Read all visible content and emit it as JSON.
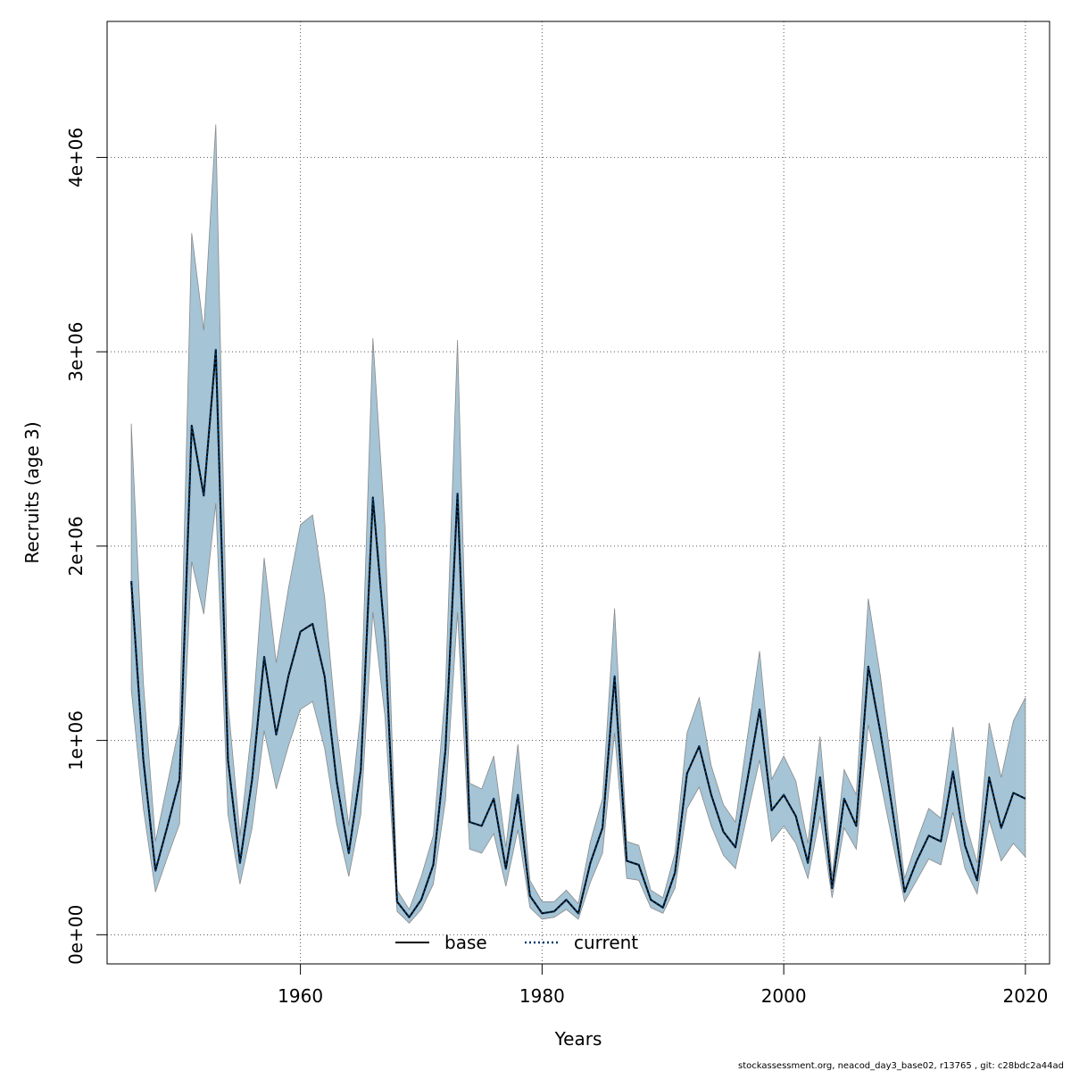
{
  "chart_data": {
    "type": "line",
    "xlabel": "Years",
    "ylabel": "Recruits (age 3)",
    "xlim": [
      1944,
      2022
    ],
    "ylim": [
      -150000,
      4700000
    ],
    "x_ticks": [
      1960,
      1980,
      2000,
      2020
    ],
    "x_tick_labels": [
      "1960",
      "1980",
      "2000",
      "2020"
    ],
    "y_ticks": [
      0,
      1000000,
      2000000,
      3000000,
      4000000
    ],
    "y_tick_labels": [
      "0e+00",
      "1e+06",
      "2e+06",
      "3e+06",
      "4e+06"
    ],
    "grid": true,
    "legend_placement": "bottom-center",
    "colors": {
      "band_fill": "#a5c4d5",
      "band_stroke": "#8a8a8a",
      "base_line": "#000000",
      "current_line": "#003a70",
      "grid": "#555555"
    },
    "years": [
      1946,
      1947,
      1948,
      1949,
      1950,
      1951,
      1952,
      1953,
      1954,
      1955,
      1956,
      1957,
      1958,
      1959,
      1960,
      1961,
      1962,
      1963,
      1964,
      1965,
      1966,
      1967,
      1968,
      1969,
      1970,
      1971,
      1972,
      1973,
      1974,
      1975,
      1976,
      1977,
      1978,
      1979,
      1980,
      1981,
      1982,
      1983,
      1984,
      1985,
      1986,
      1987,
      1988,
      1989,
      1990,
      1991,
      1992,
      1993,
      1994,
      1995,
      1996,
      1997,
      1998,
      1999,
      2000,
      2001,
      2002,
      2003,
      2004,
      2005,
      2006,
      2007,
      2008,
      2009,
      2010,
      2011,
      2012,
      2013,
      2014,
      2015,
      2016,
      2017,
      2018,
      2019,
      2020
    ],
    "series": [
      {
        "name": "base",
        "style": "solid",
        "values": [
          1820000,
          900000,
          330000,
          560000,
          800000,
          2620000,
          2260000,
          3010000,
          900000,
          370000,
          800000,
          1430000,
          1030000,
          1330000,
          1560000,
          1600000,
          1330000,
          790000,
          420000,
          850000,
          2250000,
          1520000,
          170000,
          90000,
          180000,
          360000,
          950000,
          2270000,
          580000,
          560000,
          700000,
          340000,
          720000,
          200000,
          110000,
          120000,
          180000,
          110000,
          370000,
          550000,
          1330000,
          380000,
          360000,
          180000,
          140000,
          320000,
          830000,
          970000,
          720000,
          530000,
          450000,
          800000,
          1160000,
          640000,
          720000,
          610000,
          370000,
          810000,
          240000,
          700000,
          560000,
          1380000,
          1040000,
          640000,
          220000,
          380000,
          510000,
          480000,
          840000,
          460000,
          280000,
          810000,
          550000,
          730000,
          700000
        ]
      },
      {
        "name": "current",
        "style": "dotted",
        "values": [
          1820000,
          900000,
          330000,
          560000,
          800000,
          2620000,
          2260000,
          3010000,
          900000,
          370000,
          800000,
          1430000,
          1030000,
          1330000,
          1560000,
          1600000,
          1330000,
          790000,
          420000,
          850000,
          2250000,
          1520000,
          170000,
          90000,
          180000,
          360000,
          950000,
          2270000,
          580000,
          560000,
          700000,
          340000,
          720000,
          200000,
          110000,
          120000,
          180000,
          110000,
          370000,
          550000,
          1330000,
          380000,
          360000,
          180000,
          140000,
          320000,
          830000,
          970000,
          720000,
          530000,
          450000,
          800000,
          1160000,
          640000,
          720000,
          610000,
          370000,
          810000,
          240000,
          700000,
          560000,
          1380000,
          1040000,
          640000,
          220000,
          380000,
          510000,
          480000,
          840000,
          460000,
          280000,
          810000,
          550000,
          730000,
          700000
        ]
      }
    ],
    "interval": {
      "upper": [
        2630000,
        1300000,
        480000,
        780000,
        1080000,
        3610000,
        3110000,
        4170000,
        1200000,
        510000,
        1080000,
        1940000,
        1400000,
        1780000,
        2110000,
        2160000,
        1740000,
        1060000,
        560000,
        1150000,
        3070000,
        2100000,
        230000,
        130000,
        300000,
        510000,
        1260000,
        3060000,
        780000,
        750000,
        920000,
        450000,
        980000,
        280000,
        170000,
        170000,
        230000,
        160000,
        480000,
        700000,
        1680000,
        480000,
        460000,
        230000,
        190000,
        420000,
        1040000,
        1220000,
        870000,
        670000,
        580000,
        1020000,
        1460000,
        800000,
        920000,
        790000,
        470000,
        1020000,
        300000,
        850000,
        720000,
        1730000,
        1330000,
        820000,
        290000,
        480000,
        650000,
        600000,
        1070000,
        590000,
        370000,
        1090000,
        810000,
        1100000,
        1220000
      ],
      "lower": [
        1260000,
        650000,
        220000,
        400000,
        570000,
        1920000,
        1650000,
        2220000,
        620000,
        260000,
        550000,
        1050000,
        750000,
        970000,
        1160000,
        1200000,
        960000,
        570000,
        300000,
        620000,
        1660000,
        1120000,
        120000,
        60000,
        130000,
        260000,
        690000,
        1660000,
        440000,
        420000,
        520000,
        250000,
        540000,
        140000,
        80000,
        90000,
        130000,
        80000,
        270000,
        420000,
        1040000,
        290000,
        280000,
        140000,
        110000,
        240000,
        650000,
        760000,
        560000,
        410000,
        340000,
        620000,
        900000,
        480000,
        560000,
        470000,
        290000,
        610000,
        190000,
        550000,
        440000,
        1080000,
        790000,
        480000,
        170000,
        280000,
        390000,
        360000,
        630000,
        340000,
        210000,
        590000,
        380000,
        470000,
        400000
      ]
    },
    "legend": [
      {
        "label": "base",
        "style": "solid"
      },
      {
        "label": "current",
        "style": "dotted"
      }
    ],
    "footer": "stockassessment.org, neacod_day3_base02, r13765 , git: c28bdc2a44ad"
  }
}
